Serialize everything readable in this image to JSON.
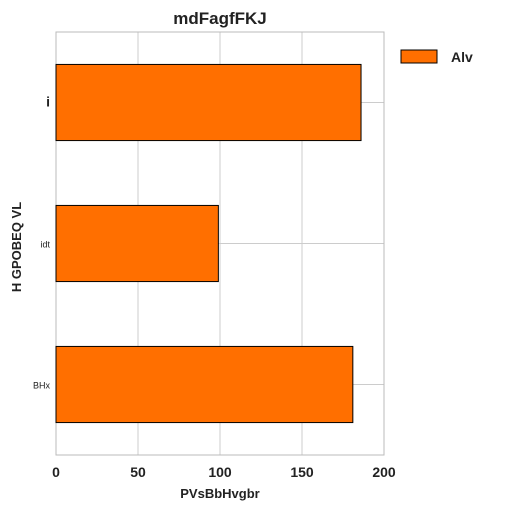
{
  "chart_data": {
    "type": "bar",
    "orientation": "horizontal",
    "title": "mdFagfFKJ",
    "xlabel": "PVsBbHvgbr",
    "ylabel": "H GPOBEQ VL",
    "categories": [
      "i",
      "idt",
      "BHx"
    ],
    "series": [
      {
        "name": "Alv",
        "values": [
          186,
          99,
          181
        ],
        "color": "#ff6f00"
      }
    ],
    "xlim": [
      0,
      200
    ],
    "xticks": [
      0,
      50,
      100,
      150,
      200
    ],
    "grid": true,
    "legend_position": "top-right"
  }
}
